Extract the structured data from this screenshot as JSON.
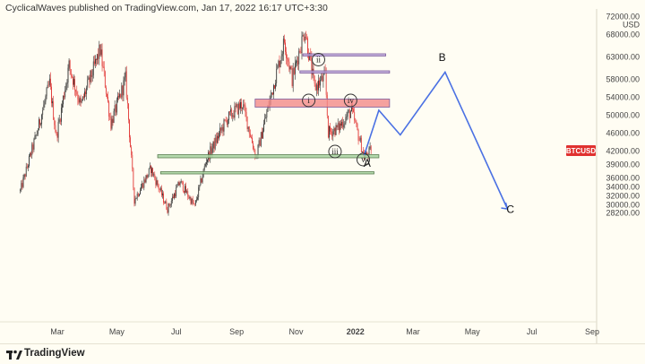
{
  "header": {
    "publish_line": "CyclicalWaves published on TradingView.com, Jan 17, 2022 16:17 UTC+3:30"
  },
  "footer": {
    "brand": "TradingView"
  },
  "chart_data": {
    "type": "candlestick",
    "symbol_label": "BTCUSD",
    "last_price": 42000,
    "currency": "USD",
    "y_ticks": [
      {
        "v": 72000,
        "label": "72000.00"
      },
      {
        "v": 68000,
        "label": "68000.00"
      },
      {
        "v": 63000,
        "label": "63000.00"
      },
      {
        "v": 58000,
        "label": "58000.00"
      },
      {
        "v": 54000,
        "label": "54000.00"
      },
      {
        "v": 50000,
        "label": "50000.00"
      },
      {
        "v": 46000,
        "label": "46000.00"
      },
      {
        "v": 42000,
        "label": "42000.00"
      },
      {
        "v": 39000,
        "label": "39000.00"
      },
      {
        "v": 36000,
        "label": "36000.00"
      },
      {
        "v": 34000,
        "label": "34000.00"
      },
      {
        "v": 32000,
        "label": "32000.00"
      },
      {
        "v": 30000,
        "label": "30000.00"
      },
      {
        "v": 28200,
        "label": "28200.00"
      }
    ],
    "x_ticks": [
      {
        "date": "2021-03-01",
        "label": "Mar",
        "bold": false
      },
      {
        "date": "2021-05-01",
        "label": "May",
        "bold": false
      },
      {
        "date": "2021-07-01",
        "label": "Jul",
        "bold": false
      },
      {
        "date": "2021-09-01",
        "label": "Sep",
        "bold": false
      },
      {
        "date": "2021-11-01",
        "label": "Nov",
        "bold": false
      },
      {
        "date": "2022-01-01",
        "label": "2022",
        "bold": true
      },
      {
        "date": "2022-03-01",
        "label": "Mar",
        "bold": false
      },
      {
        "date": "2022-05-01",
        "label": "May",
        "bold": false
      },
      {
        "date": "2022-07-01",
        "label": "Jul",
        "bold": false
      },
      {
        "date": "2022-09-01",
        "label": "Sep",
        "bold": false
      }
    ],
    "price_path": [
      [
        "2021-01-22",
        33000
      ],
      [
        "2021-02-08",
        46000
      ],
      [
        "2021-02-21",
        57000
      ],
      [
        "2021-02-28",
        45000
      ],
      [
        "2021-03-13",
        61000
      ],
      [
        "2021-03-25",
        52000
      ],
      [
        "2021-04-14",
        64500
      ],
      [
        "2021-04-25",
        48000
      ],
      [
        "2021-05-10",
        58000
      ],
      [
        "2021-05-19",
        31000
      ],
      [
        "2021-06-05",
        38000
      ],
      [
        "2021-06-22",
        29000
      ],
      [
        "2021-07-05",
        35000
      ],
      [
        "2021-07-20",
        29500
      ],
      [
        "2021-08-01",
        40000
      ],
      [
        "2021-08-22",
        49000
      ],
      [
        "2021-09-07",
        52500
      ],
      [
        "2021-09-21",
        40500
      ],
      [
        "2021-10-06",
        54000
      ],
      [
        "2021-10-20",
        66500
      ],
      [
        "2021-10-28",
        58000
      ],
      [
        "2021-11-10",
        69000
      ],
      [
        "2021-11-20",
        56000
      ],
      [
        "2021-12-01",
        58500
      ],
      [
        "2021-12-04",
        46000
      ],
      [
        "2021-12-14",
        47000
      ],
      [
        "2021-12-28",
        51000
      ],
      [
        "2022-01-10",
        40500
      ],
      [
        "2022-01-17",
        42000
      ]
    ],
    "zones": [
      {
        "name": "ii-zone",
        "kind": "resistance",
        "x1": "2021-11-08",
        "x2": "2022-02-01",
        "y1": 63600,
        "y2": 63100,
        "color": "#b9a2d8"
      },
      {
        "name": "upper-zone",
        "kind": "resistance",
        "x1": "2021-11-05",
        "x2": "2022-02-05",
        "y1": 59800,
        "y2": 59300,
        "color": "#b9a2d8"
      },
      {
        "name": "red-zone",
        "kind": "resistance",
        "x1": "2021-09-20",
        "x2": "2022-02-05",
        "y1": 53500,
        "y2": 51700,
        "color": "#f28a88"
      },
      {
        "name": "green-zone-1",
        "kind": "support",
        "x1": "2021-06-12",
        "x2": "2022-01-25",
        "y1": 41100,
        "y2": 40400,
        "color": "#a8d4a0"
      },
      {
        "name": "green-zone-2",
        "kind": "support",
        "x1": "2021-06-15",
        "x2": "2022-01-20",
        "y1": 37300,
        "y2": 36800,
        "color": "#a8d4a0"
      }
    ],
    "wave_labels": [
      {
        "name": "wave-i",
        "text": "i",
        "date": "2021-11-14",
        "price": 53200
      },
      {
        "name": "wave-ii",
        "text": "ii",
        "date": "2021-11-24",
        "price": 62300
      },
      {
        "name": "wave-iii",
        "text": "iii",
        "date": "2021-12-11",
        "price": 41800
      },
      {
        "name": "wave-iv",
        "text": "iv",
        "date": "2021-12-27",
        "price": 53200
      },
      {
        "name": "wave-v",
        "text": "v",
        "date": "2022-01-09",
        "price": 40000
      }
    ],
    "projection": [
      {
        "date": "2022-01-10",
        "price": 41000
      },
      {
        "date": "2022-01-25",
        "price": 51000
      },
      {
        "date": "2022-02-16",
        "price": 45500
      },
      {
        "date": "2022-04-03",
        "price": 59500
      },
      {
        "date": "2022-06-06",
        "price": 29000
      }
    ],
    "projection_color": "#4b71e3",
    "abc_labels": [
      {
        "name": "label-A",
        "text": "A",
        "date": "2022-01-13",
        "price": 39200
      },
      {
        "name": "label-B",
        "text": "B",
        "date": "2022-03-31",
        "price": 62800
      },
      {
        "name": "label-C",
        "text": "C",
        "date": "2022-06-09",
        "price": 28900
      }
    ],
    "bull_color": "#2b2b2b",
    "bear_color": "#e0312f"
  }
}
